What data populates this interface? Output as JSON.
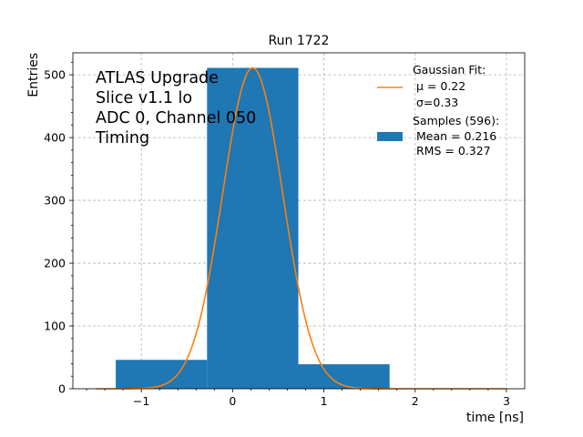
{
  "chart_data": {
    "type": "bar",
    "title": "Run 1722",
    "xlabel": "time [ns]",
    "ylabel": "Entries",
    "xlim": [
      -1.75,
      3.2
    ],
    "ylim": [
      0,
      535
    ],
    "xticks": [
      -1,
      0,
      1,
      2,
      3
    ],
    "xtick_labels": [
      "−1",
      "0",
      "1",
      "2",
      "3"
    ],
    "yticks": [
      0,
      100,
      200,
      300,
      400,
      500
    ],
    "ytick_labels": [
      "0",
      "100",
      "200",
      "300",
      "400",
      "500"
    ],
    "grid": true,
    "histogram": {
      "color": "#1f77b4",
      "bins": [
        {
          "x0": -1.28,
          "x1": -0.28,
          "count": 46
        },
        {
          "x0": -0.28,
          "x1": 0.72,
          "count": 511
        },
        {
          "x0": 0.72,
          "x1": 1.72,
          "count": 39
        }
      ]
    },
    "fit": {
      "color": "#ff7f0e",
      "mu": 0.22,
      "sigma": 0.33,
      "amplitude": 511,
      "x_range": [
        -1.5,
        3.0
      ]
    },
    "annotation_lines": [
      "ATLAS Upgrade",
      "Slice v1.1 lo",
      "ADC 0, Channel 050",
      "Timing"
    ],
    "legend": {
      "placement": "top-right",
      "fit_lines": [
        "Gaussian Fit:",
        "μ = 0.22",
        "σ=0.33"
      ],
      "samples_lines": [
        "Samples (596):",
        "Mean = 0.216",
        "RMS = 0.327"
      ]
    }
  }
}
